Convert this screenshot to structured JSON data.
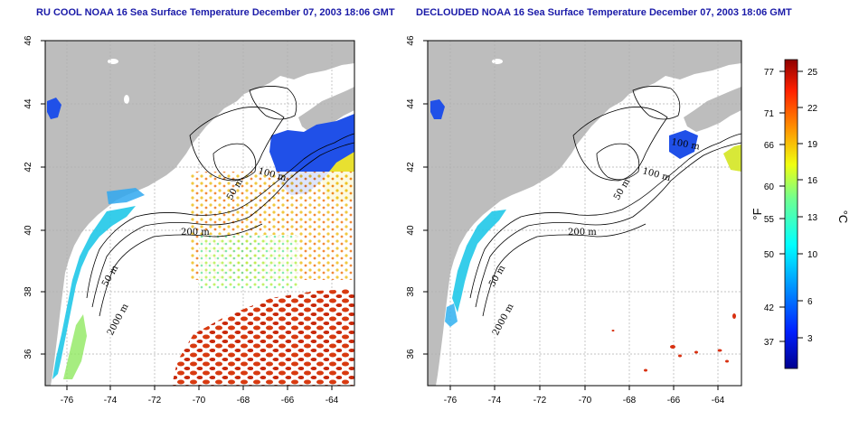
{
  "panels": [
    {
      "title": "RU COOL NOAA 16 Sea Surface Temperature December 07, 2003 18:06 GMT",
      "lat_ticks": [
        "46",
        "44",
        "42",
        "40",
        "38",
        "36"
      ],
      "lon_ticks": [
        "-76",
        "-74",
        "-72",
        "-70",
        "-68",
        "-66",
        "-64"
      ],
      "contour_labels": [
        "100 m",
        "50 m",
        "200 m",
        "50 m",
        "2000 m"
      ]
    },
    {
      "title": "DECLOUDED NOAA 16 Sea Surface Temperature December 07, 2003 18:06 GMT",
      "lat_ticks": [
        "46",
        "44",
        "42",
        "40",
        "38",
        "36"
      ],
      "lon_ticks": [
        "-76",
        "-74",
        "-72",
        "-70",
        "-68",
        "-66",
        "-64"
      ],
      "contour_labels": [
        "100 m",
        "100 m",
        "50 m",
        "200 m",
        "50 m",
        "2000 m"
      ]
    }
  ],
  "colorbar": {
    "f_label": "°F",
    "c_label": "°C",
    "f_ticks": [
      "77",
      "71",
      "66",
      "60",
      "55",
      "50",
      "42",
      "37"
    ],
    "c_ticks": [
      "25",
      "22",
      "19",
      "16",
      "13",
      "10",
      "6",
      "3"
    ]
  },
  "colors": {
    "land": "#bdbdbd",
    "title": "#1a1aa8",
    "grid": "#b0b0b0"
  }
}
